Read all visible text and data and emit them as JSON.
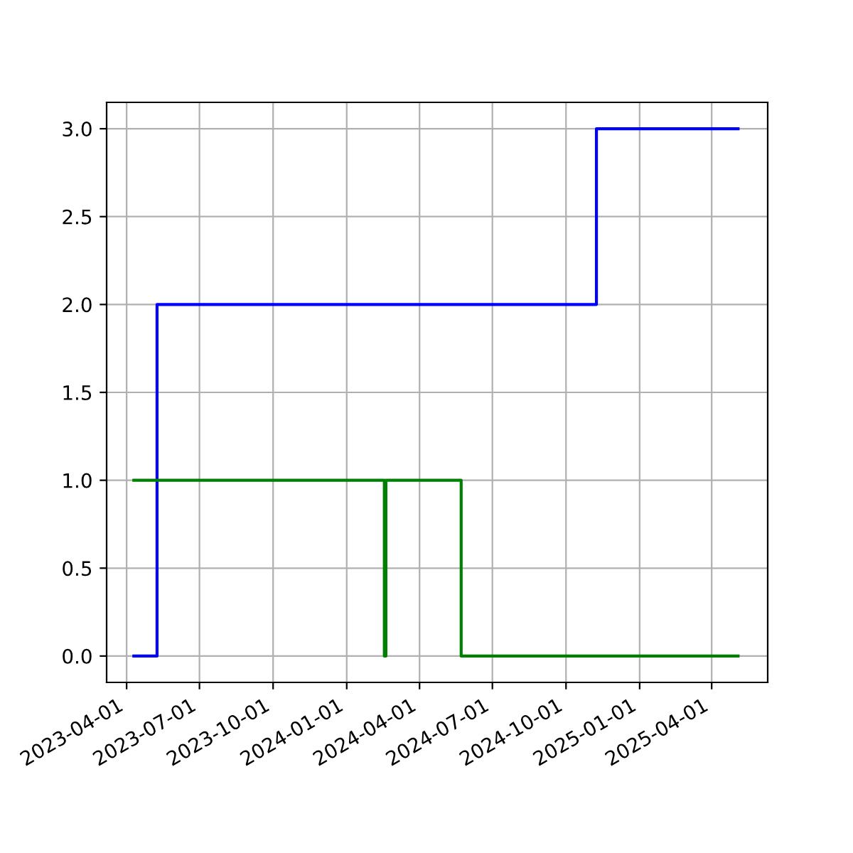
{
  "chart_data": {
    "type": "step",
    "xlim": [
      "2023-03-07",
      "2025-06-10"
    ],
    "ylim": [
      -0.15,
      3.15
    ],
    "xticks": [
      "2023-04-01",
      "2023-07-01",
      "2023-10-01",
      "2024-01-01",
      "2024-04-01",
      "2024-07-01",
      "2024-10-01",
      "2025-01-01",
      "2025-04-01"
    ],
    "yticks": [
      {
        "value": 0,
        "label": "0.0"
      },
      {
        "value": 0.5,
        "label": "0.5"
      },
      {
        "value": 1,
        "label": "1.0"
      },
      {
        "value": 1.5,
        "label": "1.5"
      },
      {
        "value": 2,
        "label": "2.0"
      },
      {
        "value": 2.5,
        "label": "2.5"
      },
      {
        "value": 3,
        "label": "3.0"
      }
    ],
    "grid": true,
    "series": [
      {
        "color": "#0000ff",
        "x": [
          "2023-04-10",
          "2023-05-09",
          "2024-11-08",
          "2025-05-04"
        ],
        "values": [
          0,
          2,
          3,
          3
        ]
      },
      {
        "color": "#008000",
        "x": [
          "2023-04-10",
          "2024-02-17",
          "2024-02-19",
          "2024-05-23",
          "2025-05-04"
        ],
        "values": [
          1,
          0,
          1,
          0,
          0
        ]
      }
    ]
  }
}
